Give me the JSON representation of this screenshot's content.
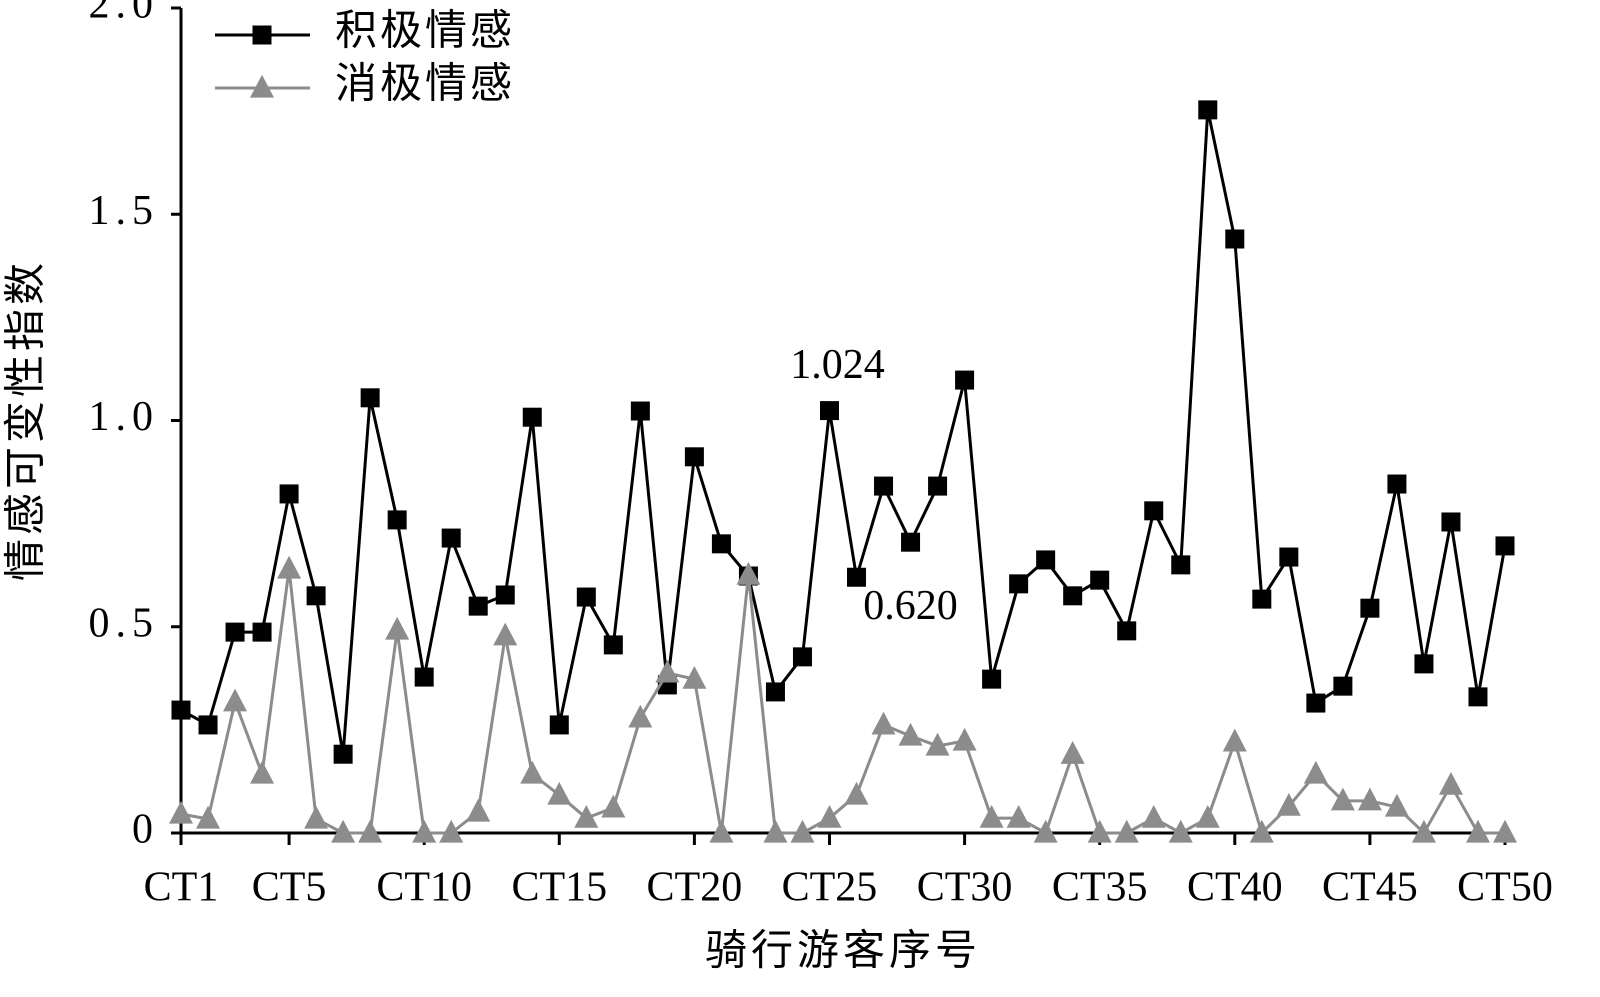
{
  "chart_data": {
    "type": "line",
    "x_label": "骑行游客序号",
    "y_label": "情感可变性指数",
    "categories": [
      "CT1",
      null,
      null,
      null,
      "CT5",
      null,
      null,
      null,
      null,
      "CT10",
      null,
      null,
      null,
      null,
      "CT15",
      null,
      null,
      null,
      null,
      "CT20",
      null,
      null,
      null,
      null,
      "CT25",
      null,
      null,
      null,
      null,
      "CT30",
      null,
      null,
      null,
      null,
      "CT35",
      null,
      null,
      null,
      null,
      "CT40",
      null,
      null,
      null,
      null,
      "CT45",
      null,
      null,
      null,
      null,
      "CT50"
    ],
    "series": [
      {
        "name": "积极情感",
        "color": "#000000",
        "marker": "square",
        "values": [
          0.298,
          0.262,
          0.487,
          0.487,
          0.822,
          0.575,
          0.191,
          1.055,
          0.759,
          0.378,
          0.715,
          0.55,
          0.577,
          1.008,
          0.262,
          0.572,
          0.456,
          1.023,
          0.359,
          0.912,
          0.701,
          0.623,
          0.342,
          0.427,
          1.024,
          0.62,
          0.841,
          0.705,
          0.841,
          1.098,
          0.373,
          0.604,
          0.662,
          0.575,
          0.613,
          0.49,
          0.781,
          0.65,
          1.753,
          1.44,
          0.567,
          0.669,
          0.315,
          0.356,
          0.545,
          0.846,
          0.41,
          0.754,
          0.33,
          0.696
        ]
      },
      {
        "name": "消极情感",
        "color": "#8c8c8c",
        "marker": "triangle",
        "values": [
          0.046,
          0.034,
          0.318,
          0.143,
          0.64,
          0.034,
          0,
          0,
          0.492,
          0,
          0,
          0.051,
          0.478,
          0.143,
          0.092,
          0.036,
          0.061,
          0.279,
          0.388,
          0.373,
          0,
          0.625,
          0,
          0,
          0.036,
          0.092,
          0.262,
          0.235,
          0.211,
          0.223,
          0.036,
          0.036,
          0,
          0.191,
          0,
          0,
          0.036,
          0,
          0.036,
          0.221,
          0,
          0.065,
          0.143,
          0.078,
          0.078,
          0.063,
          0,
          0.116,
          0,
          0
        ]
      }
    ],
    "annotations": [
      {
        "text": "1.024",
        "series": 0,
        "index": 24
      },
      {
        "text": "0.620",
        "series": 0,
        "index": 25
      }
    ],
    "ylim": [
      0,
      2
    ],
    "yticks": [
      0,
      {
        "value": 0.5,
        "label": "0.5"
      },
      {
        "value": 1,
        "label": "1.0"
      },
      {
        "value": 1.5,
        "label": "1.5"
      },
      {
        "value": 2,
        "label": "2.0"
      }
    ],
    "legend": "upper left",
    "grid": false
  }
}
